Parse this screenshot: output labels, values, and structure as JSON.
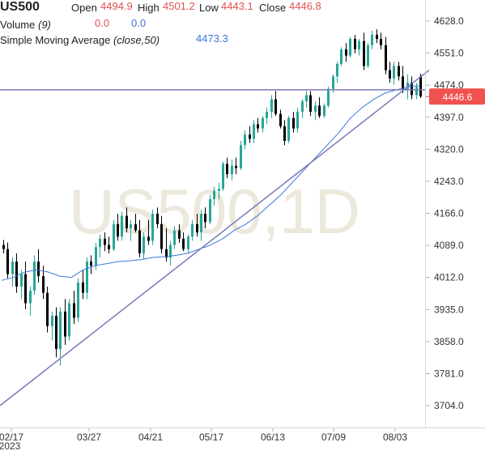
{
  "legend": {
    "symbol": "US500",
    "ohlc": {
      "open_label": "Open",
      "open": "4494.9",
      "high_label": "High",
      "high": "4501.2",
      "low_label": "Low",
      "low": "4443.1",
      "close_label": "Close",
      "close": "4446.8"
    },
    "volume": {
      "label": "Volume",
      "param": "(9)",
      "value1": "0.0",
      "value2": "0.0"
    },
    "sma": {
      "label": "Simple Moving Average",
      "param": "(close,50)",
      "value": "4473.3"
    }
  },
  "watermark": "US500,1D",
  "price_tag": "4446.6",
  "colors": {
    "up": "#26a69a",
    "down": "#000000",
    "sma": "#3c78d8",
    "trendline": "#7b78b9",
    "price_tag": "#f0524f",
    "watermark": "#ece8dc"
  },
  "chart_data": {
    "type": "candlestick",
    "title": "US500",
    "y_ticks": [
      "4628.0",
      "4551.0",
      "4474.0",
      "4397.0",
      "4320.0",
      "4243.0",
      "4166.0",
      "4089.0",
      "4012.0",
      "3935.0",
      "3858.0",
      "3781.0",
      "3704.0"
    ],
    "x_ticks": [
      "02/17",
      "03/27",
      "04/21",
      "05/17",
      "06/13",
      "07/09",
      "08/03"
    ],
    "x_year": "2023",
    "ylim": [
      3704.0,
      4628.0
    ],
    "last_price": 4446.6,
    "horizontal_line": 4463.0,
    "trendline": {
      "from": [
        "02/17",
        3704
      ],
      "to": [
        "08/11",
        4510
      ]
    },
    "sma_50": [
      4005,
      4012,
      4025,
      4030,
      4025,
      4015,
      4012,
      4030,
      4040,
      4045,
      4050,
      4052,
      4055,
      4060,
      4062,
      4065,
      4070,
      4080,
      4090,
      4105,
      4125,
      4140,
      4160,
      4185,
      4210,
      4240,
      4270,
      4300,
      4330,
      4360,
      4395,
      4420,
      4440,
      4455,
      4463,
      4470,
      4473.3
    ],
    "ohlc": [
      [
        4090,
        4102,
        4070,
        4080
      ],
      [
        4080,
        4096,
        4010,
        4020
      ],
      [
        4020,
        4060,
        3990,
        4050
      ],
      [
        4050,
        4070,
        3975,
        3990
      ],
      [
        3990,
        4030,
        3960,
        4020
      ],
      [
        4020,
        4050,
        3935,
        3950
      ],
      [
        3950,
        3990,
        3920,
        3980
      ],
      [
        3980,
        4065,
        3970,
        4050
      ],
      [
        4050,
        4080,
        4000,
        4015
      ],
      [
        4015,
        4040,
        3960,
        3975
      ],
      [
        3975,
        3990,
        3880,
        3895
      ],
      [
        3895,
        3930,
        3860,
        3920
      ],
      [
        3920,
        3940,
        3820,
        3840
      ],
      [
        3840,
        3940,
        3800,
        3930
      ],
      [
        3930,
        3960,
        3850,
        3870
      ],
      [
        3870,
        3960,
        3860,
        3950
      ],
      [
        3950,
        3980,
        3900,
        3915
      ],
      [
        3915,
        4010,
        3905,
        4000
      ],
      [
        4000,
        4030,
        3960,
        3975
      ],
      [
        3975,
        4060,
        3960,
        4050
      ],
      [
        4050,
        4065,
        4020,
        4040
      ],
      [
        4040,
        4095,
        4030,
        4085
      ],
      [
        4085,
        4115,
        4060,
        4105
      ],
      [
        4105,
        4120,
        4075,
        4090
      ],
      [
        4090,
        4110,
        4070,
        4080
      ],
      [
        4080,
        4150,
        4075,
        4140
      ],
      [
        4140,
        4165,
        4100,
        4110
      ],
      [
        4110,
        4170,
        4100,
        4160
      ],
      [
        4160,
        4180,
        4120,
        4130
      ],
      [
        4130,
        4150,
        4100,
        4140
      ],
      [
        4140,
        4165,
        4120,
        4125
      ],
      [
        4125,
        4150,
        4060,
        4070
      ],
      [
        4070,
        4120,
        4055,
        4110
      ],
      [
        4110,
        4150,
        4090,
        4100
      ],
      [
        4100,
        4175,
        4090,
        4165
      ],
      [
        4165,
        4180,
        4130,
        4140
      ],
      [
        4140,
        4160,
        4070,
        4080
      ],
      [
        4080,
        4130,
        4050,
        4060
      ],
      [
        4060,
        4100,
        4040,
        4090
      ],
      [
        4090,
        4135,
        4080,
        4125
      ],
      [
        4125,
        4140,
        4095,
        4105
      ],
      [
        4105,
        4120,
        4075,
        4080
      ],
      [
        4080,
        4115,
        4070,
        4110
      ],
      [
        4110,
        4150,
        4100,
        4140
      ],
      [
        4140,
        4165,
        4110,
        4120
      ],
      [
        4120,
        4175,
        4100,
        4165
      ],
      [
        4165,
        4180,
        4130,
        4145
      ],
      [
        4145,
        4210,
        4140,
        4200
      ],
      [
        4200,
        4230,
        4185,
        4220
      ],
      [
        4220,
        4240,
        4200,
        4225
      ],
      [
        4225,
        4290,
        4220,
        4285
      ],
      [
        4285,
        4300,
        4250,
        4260
      ],
      [
        4260,
        4295,
        4245,
        4280
      ],
      [
        4280,
        4300,
        4260,
        4275
      ],
      [
        4275,
        4340,
        4270,
        4330
      ],
      [
        4330,
        4365,
        4320,
        4355
      ],
      [
        4355,
        4375,
        4335,
        4345
      ],
      [
        4345,
        4390,
        4335,
        4380
      ],
      [
        4380,
        4395,
        4360,
        4370
      ],
      [
        4370,
        4400,
        4360,
        4395
      ],
      [
        4395,
        4420,
        4380,
        4410
      ],
      [
        4410,
        4450,
        4395,
        4440
      ],
      [
        4440,
        4460,
        4400,
        4405
      ],
      [
        4405,
        4415,
        4370,
        4375
      ],
      [
        4375,
        4390,
        4330,
        4340
      ],
      [
        4340,
        4400,
        4335,
        4395
      ],
      [
        4395,
        4410,
        4360,
        4370
      ],
      [
        4370,
        4420,
        4360,
        4410
      ],
      [
        4410,
        4440,
        4395,
        4435
      ],
      [
        4435,
        4460,
        4420,
        4450
      ],
      [
        4450,
        4460,
        4400,
        4410
      ],
      [
        4410,
        4435,
        4390,
        4425
      ],
      [
        4425,
        4445,
        4395,
        4400
      ],
      [
        4400,
        4430,
        4395,
        4425
      ],
      [
        4425,
        4470,
        4420,
        4465
      ],
      [
        4465,
        4500,
        4455,
        4495
      ],
      [
        4495,
        4530,
        4480,
        4525
      ],
      [
        4525,
        4565,
        4520,
        4560
      ],
      [
        4560,
        4575,
        4530,
        4545
      ],
      [
        4545,
        4590,
        4540,
        4585
      ],
      [
        4585,
        4595,
        4550,
        4560
      ],
      [
        4560,
        4585,
        4545,
        4580
      ],
      [
        4580,
        4600,
        4510,
        4520
      ],
      [
        4520,
        4575,
        4515,
        4570
      ],
      [
        4570,
        4605,
        4560,
        4595
      ],
      [
        4595,
        4608,
        4575,
        4585
      ],
      [
        4585,
        4600,
        4560,
        4570
      ],
      [
        4570,
        4590,
        4500,
        4510
      ],
      [
        4510,
        4530,
        4480,
        4490
      ],
      [
        4490,
        4530,
        4475,
        4520
      ],
      [
        4520,
        4530,
        4485,
        4495
      ],
      [
        4495,
        4520,
        4455,
        4465
      ],
      [
        4465,
        4500,
        4440,
        4480
      ],
      [
        4480,
        4495,
        4440,
        4450
      ],
      [
        4450,
        4480,
        4440,
        4470
      ],
      [
        4494.9,
        4501.2,
        4443.1,
        4446.8
      ]
    ]
  }
}
